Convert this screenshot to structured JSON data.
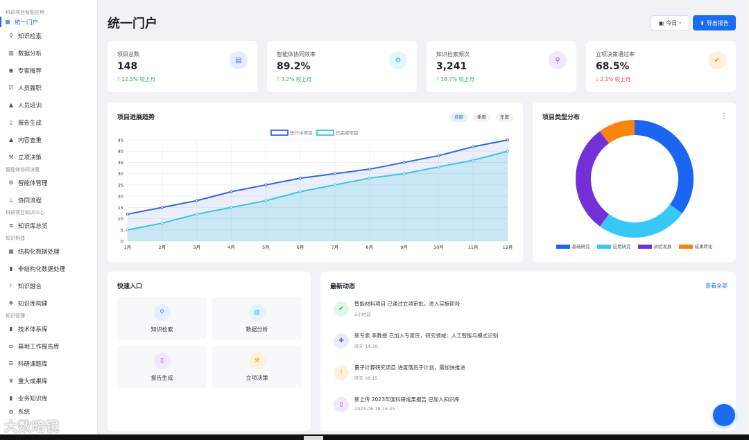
{
  "sidebar": {
    "groups": [
      {
        "label": "科研项目智能应用",
        "items": [
          {
            "label": "统一门户",
            "icon": "portal-icon",
            "active": true
          },
          {
            "label": "知识检索",
            "icon": "search-icon"
          },
          {
            "label": "数据分析",
            "icon": "chart-icon"
          },
          {
            "label": "专家推荐",
            "icon": "user-icon"
          },
          {
            "label": "人员履职",
            "icon": "check-icon"
          },
          {
            "label": "人员培训",
            "icon": "graduation-icon"
          },
          {
            "label": "报告生成",
            "icon": "file-icon"
          },
          {
            "label": "内容查重",
            "icon": "warning-icon"
          },
          {
            "label": "立项决策",
            "icon": "gavel-icon"
          }
        ]
      },
      {
        "label": "智能体协同决策",
        "items": [
          {
            "label": "智能体管理",
            "icon": "cogs-icon"
          },
          {
            "label": "协同流程",
            "icon": "sitemap-icon"
          }
        ]
      },
      {
        "label": "科研项目知识中心",
        "items": [
          {
            "label": "知识库总览",
            "icon": "database-icon"
          }
        ]
      },
      {
        "label": "知识构建",
        "items": [
          {
            "label": "结构化数据处理",
            "icon": "table-icon"
          },
          {
            "label": "非结构化数据处理",
            "icon": "document-icon"
          },
          {
            "label": "知识融合",
            "icon": "merge-icon"
          },
          {
            "label": "知识库构建",
            "icon": "cubes-icon"
          }
        ]
      },
      {
        "label": "知识管理",
        "items": [
          {
            "label": "技术体系库",
            "icon": "book-icon"
          },
          {
            "label": "基地工作报告库",
            "icon": "folder-icon"
          },
          {
            "label": "科研课题库",
            "icon": "list-icon"
          },
          {
            "label": "重大成果库",
            "icon": "trophy-icon"
          },
          {
            "label": "业务知识库",
            "icon": "book-open-icon"
          }
        ]
      }
    ],
    "partial_bottom": "系统"
  },
  "header": {
    "title": "统一门户",
    "today_label": "今日",
    "export_label": "导出报告"
  },
  "stats": [
    {
      "label": "项目总数",
      "value": "148",
      "change": "12.5% 较上月",
      "direction": "up",
      "icon": "folder-icon",
      "icon_bg": "#e6edff",
      "icon_color": "#4a6cf7"
    },
    {
      "label": "智能体协同效率",
      "value": "89.2%",
      "change": "3.2% 较上月",
      "direction": "up",
      "icon": "cogs-icon",
      "icon_bg": "#e3f7fb",
      "icon_color": "#1cb5d8"
    },
    {
      "label": "知识检索频次",
      "value": "3,241",
      "change": "18.7% 较上月",
      "direction": "up",
      "icon": "search-icon",
      "icon_bg": "#f3e8fb",
      "icon_color": "#a14ad6"
    },
    {
      "label": "立项决策通过率",
      "value": "68.5%",
      "change": "2.1% 较上月",
      "direction": "down",
      "icon": "check-circle-icon",
      "icon_bg": "#fdf2d9",
      "icon_color": "#e0a20a"
    }
  ],
  "trend": {
    "title": "项目进展趋势",
    "periods": [
      "月度",
      "季度",
      "年度"
    ],
    "active_period": "月度"
  },
  "chart_data": [
    {
      "type": "line",
      "x": [
        "1月",
        "2月",
        "3月",
        "4月",
        "5月",
        "6月",
        "7月",
        "8月",
        "9月",
        "10月",
        "11月",
        "12月"
      ],
      "series": [
        {
          "name": "进行中项目",
          "values": [
            12,
            15,
            18,
            22,
            25,
            28,
            30,
            32,
            35,
            38,
            42,
            45
          ],
          "color": "#3465d8"
        },
        {
          "name": "已完成项目",
          "values": [
            5,
            8,
            12,
            15,
            18,
            22,
            25,
            28,
            30,
            33,
            36,
            40
          ],
          "color": "#3fc3de"
        }
      ],
      "ylim": [
        0,
        45
      ],
      "yticks": [
        0,
        5,
        10,
        15,
        20,
        25,
        30,
        35,
        40,
        45
      ],
      "grid": true,
      "legend": "top-center"
    },
    {
      "type": "pie",
      "title": "项目类型分布",
      "categories": [
        "基础研究",
        "应用研究",
        "试验发展",
        "成果转化"
      ],
      "values": [
        35,
        25,
        30,
        10
      ],
      "colors": [
        "#1a66f2",
        "#37c8f5",
        "#7330d6",
        "#fb8410"
      ],
      "donut": true,
      "legend": "bottom"
    }
  ],
  "quick": {
    "title": "快速入口",
    "items": [
      {
        "label": "知识检索",
        "icon": "search-icon",
        "bg": "#e6edff",
        "color": "#4a6cf7"
      },
      {
        "label": "数据分析",
        "icon": "chart-icon",
        "bg": "#e3f4fc",
        "color": "#46a9e0"
      },
      {
        "label": "报告生成",
        "icon": "file-icon",
        "bg": "#f3e8fb",
        "color": "#a14ad6"
      },
      {
        "label": "立项决策",
        "icon": "gavel-icon",
        "bg": "#fdf2d9",
        "color": "#e0a20a"
      }
    ]
  },
  "activity": {
    "title": "最新动态",
    "view_all": "查看全部",
    "items": [
      {
        "text": "智能材料项目 已通过立项审批，进入实施阶段",
        "time": "2小时前",
        "icon": "check-icon",
        "bg": "#e3f6e8",
        "color": "#2bb24c"
      },
      {
        "text": "新专家 李教授 已加入专家库，研究领域：人工智能与模式识别",
        "time": "昨天 14:30",
        "icon": "user-plus-icon",
        "bg": "#e6edff",
        "color": "#4a6cf7"
      },
      {
        "text": "量子计算研究项目 进度落后于计划，需加快推进",
        "time": "昨天 09:15",
        "icon": "exclamation-icon",
        "bg": "#fdf2d9",
        "color": "#e0a20a"
      },
      {
        "text": "新上传 2023年度科研成果报告 已加入知识库",
        "time": "2023-06-18 16:45",
        "icon": "file-icon",
        "bg": "#f3e8fb",
        "color": "#a14ad6"
      }
    ]
  },
  "watermark": "大数暗镜"
}
